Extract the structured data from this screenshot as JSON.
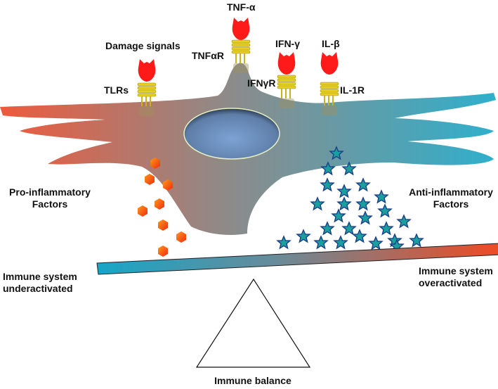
{
  "labels": {
    "damage_signals": "Damage signals",
    "tnf_alpha": "TNF-α",
    "tnf_alpha_r": "TNFαR",
    "ifn_gamma": "IFN-γ",
    "ifn_gamma_r": "IFNγR",
    "il_beta": "IL-β",
    "il_1r": "IL-1R",
    "tlrs": "TLRs",
    "pro_inflammatory_1": "Pro-inflammatory",
    "pro_inflammatory_2": "Factors",
    "anti_inflammatory_1": "Anti-inflammatory",
    "anti_inflammatory_2": "Factors",
    "underactivated_1": "Immune system",
    "underactivated_2": "underactivated",
    "overactivated_1": "Immune system",
    "overactivated_2": "overactivated",
    "immune_balance": "Immune balance"
  },
  "colors": {
    "pro_inflammatory": "#e8452a",
    "anti_inflammatory": "#2aa6c4",
    "ligand": "#ff1a1a",
    "receptor": "#d9c21a",
    "nucleus": "#7b9cc8"
  }
}
